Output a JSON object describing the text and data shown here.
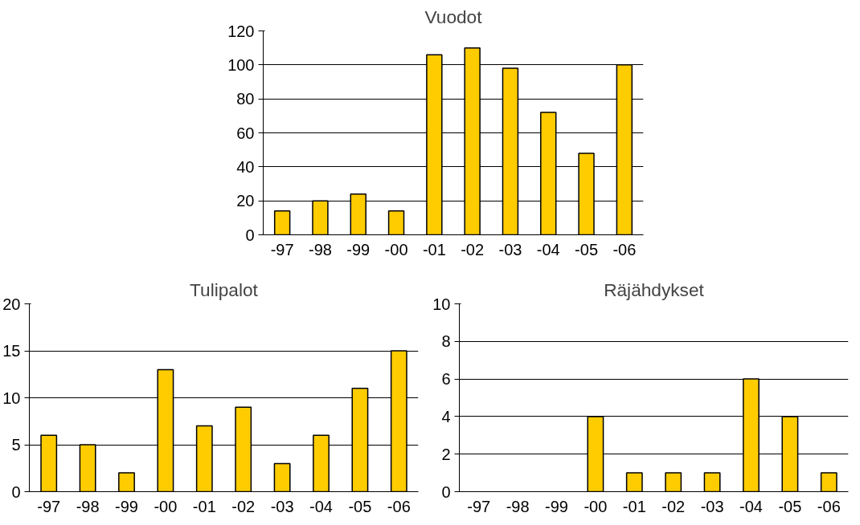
{
  "chart_data": [
    {
      "type": "bar",
      "title": "Vuodot",
      "categories": [
        "-97",
        "-98",
        "-99",
        "-00",
        "-01",
        "-02",
        "-03",
        "-04",
        "-05",
        "-06"
      ],
      "values": [
        14,
        20,
        24,
        14,
        106,
        110,
        98,
        72,
        48,
        100
      ],
      "color": "#ffcc00",
      "ylim": [
        0,
        120
      ],
      "yticks": [
        0,
        20,
        40,
        60,
        80,
        100,
        120
      ],
      "grid": "y",
      "legend": false
    },
    {
      "type": "bar",
      "title": "Tulipalot",
      "categories": [
        "-97",
        "-98",
        "-99",
        "-00",
        "-01",
        "-02",
        "-03",
        "-04",
        "-05",
        "-06"
      ],
      "values": [
        6,
        5,
        2,
        13,
        7,
        9,
        3,
        6,
        11,
        15
      ],
      "color": "#ffcc00",
      "ylim": [
        0,
        20
      ],
      "yticks": [
        0,
        5,
        10,
        15,
        20
      ],
      "grid": "y",
      "legend": false
    },
    {
      "type": "bar",
      "title": "Räjähdykset",
      "categories": [
        "-97",
        "-98",
        "-99",
        "-00",
        "-01",
        "-02",
        "-03",
        "-04",
        "-05",
        "-06"
      ],
      "values": [
        null,
        null,
        null,
        4,
        1,
        1,
        1,
        6,
        4,
        1
      ],
      "color": "#ffcc00",
      "ylim": [
        0,
        10
      ],
      "yticks": [
        0,
        2,
        4,
        6,
        8,
        10
      ],
      "grid": "y",
      "legend": false
    }
  ]
}
